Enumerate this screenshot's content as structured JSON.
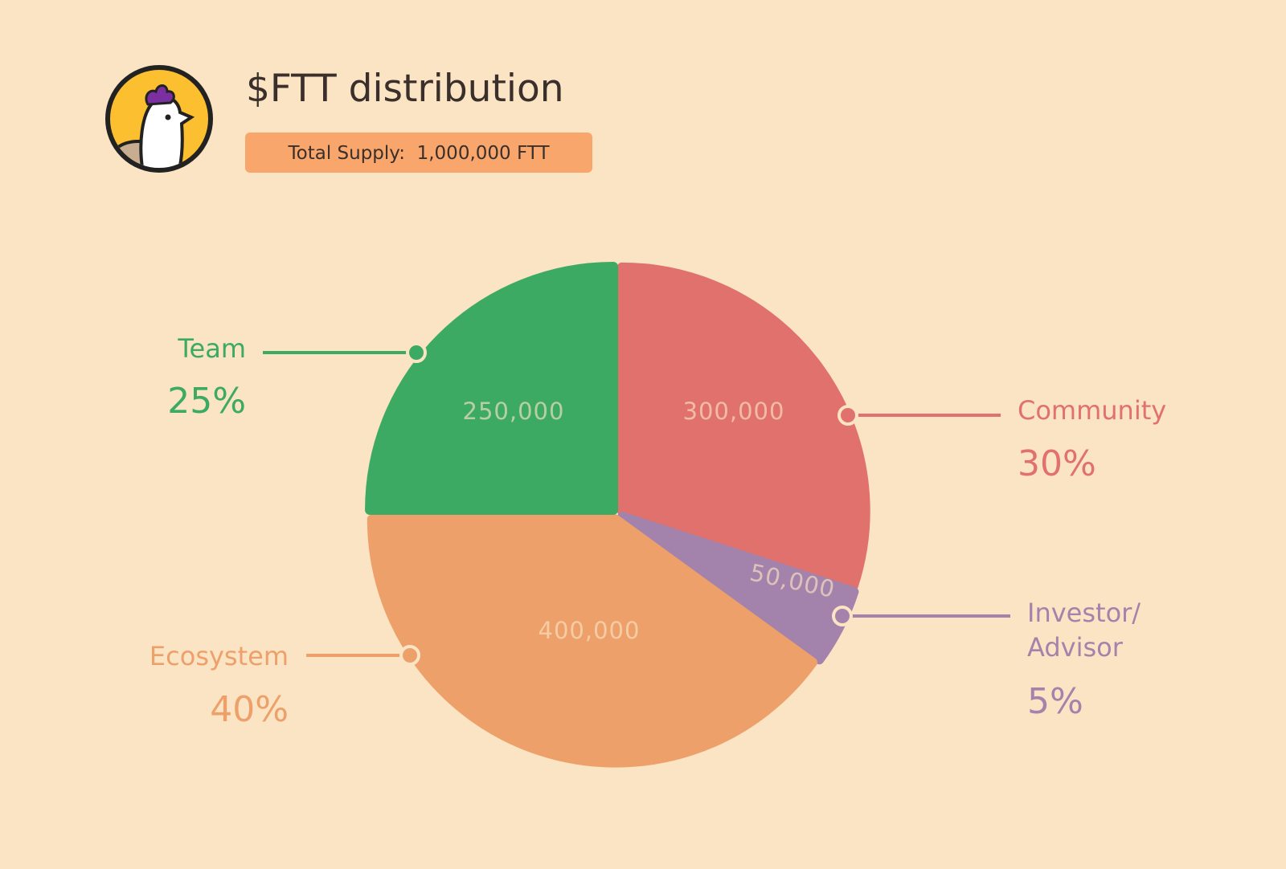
{
  "chart_data": {
    "type": "pie",
    "title": "$FTT distribution",
    "subtitle": "Total Supply:  1,000,000 FTT",
    "categories": [
      "Community",
      "Investor/\nAdvisor",
      "Ecosystem",
      "Team"
    ],
    "values": [
      300000,
      50000,
      400000,
      250000
    ],
    "value_labels": [
      "300,000",
      "50,000",
      "400,000",
      "250,000"
    ],
    "percent_labels": [
      "30%",
      "5%",
      "40%",
      "25%"
    ],
    "colors": [
      "#e1716c",
      "#a383ab",
      "#eea06a",
      "#3daa63"
    ]
  }
}
